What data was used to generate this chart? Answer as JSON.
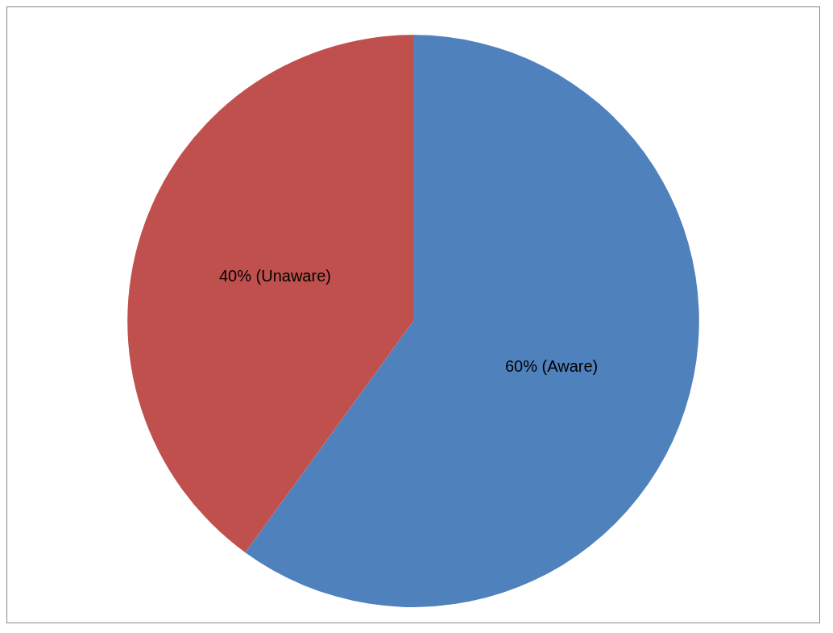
{
  "chart_data": {
    "type": "pie",
    "categories": [
      null,
      null
    ],
    "values": [
      60,
      40
    ],
    "colors": [
      "#4f81bd",
      "#c0504d"
    ],
    "value_labels": [
      "60% (Aware)",
      "40% (Unaware)"
    ]
  }
}
